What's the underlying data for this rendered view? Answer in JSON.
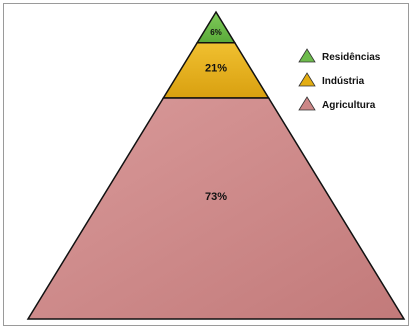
{
  "chart_data": {
    "type": "pyramid",
    "title": "",
    "series": [
      {
        "name": "Residências",
        "value": 6,
        "label": "6%",
        "color": "#6dbb4c"
      },
      {
        "name": "Indústria",
        "value": 21,
        "label": "21%",
        "color": "#e3ad12"
      },
      {
        "name": "Agricultura",
        "value": 73,
        "label": "73%",
        "color": "#cd8787"
      }
    ],
    "legend_position": "top-right"
  }
}
